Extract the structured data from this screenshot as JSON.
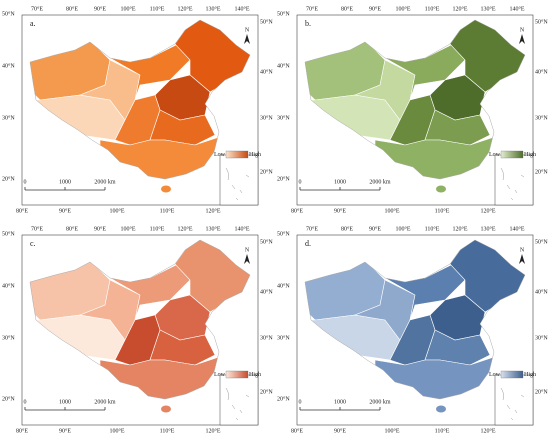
{
  "panels": [
    {
      "label": "a.",
      "legend": {
        "low": "Low",
        "high": "High"
      },
      "legend_colors": [
        "#fde3cc",
        "#c74a12"
      ],
      "region_colors": [
        "#f39a4f",
        "#fbd7b7",
        "#f8bd8a",
        "#f07a26",
        "#e25a12",
        "#c74a12",
        "#ef7c2e",
        "#e86a1e",
        "#f48b3a"
      ]
    },
    {
      "label": "b.",
      "legend": {
        "low": "Low",
        "high": "High"
      },
      "legend_colors": [
        "#e2eecd",
        "#4f6d2a"
      ],
      "region_colors": [
        "#a3c17a",
        "#d3e5b6",
        "#c3d99f",
        "#8aab5c",
        "#5d7c33",
        "#4f6d2a",
        "#6a8a3d",
        "#7c9c4f",
        "#8fb163"
      ]
    },
    {
      "label": "c.",
      "legend": {
        "low": "Low",
        "high": "High"
      },
      "legend_colors": [
        "#fde8dc",
        "#c84d2f"
      ],
      "region_colors": [
        "#f6c2a8",
        "#fde8dc",
        "#f4b394",
        "#ec9a78",
        "#e8926e",
        "#d9684a",
        "#c84d2f",
        "#d8623f",
        "#e48462"
      ]
    },
    {
      "label": "d.",
      "legend": {
        "low": "Low",
        "high": "High"
      },
      "legend_colors": [
        "#d6e1ee",
        "#3d5f8e"
      ],
      "region_colors": [
        "#93aed0",
        "#c8d6e8",
        "#8fa9cd",
        "#5b7fae",
        "#476c9c",
        "#3d5f8e",
        "#50749f",
        "#5e81ad",
        "#7594bf"
      ]
    }
  ],
  "axes": {
    "top_lon": [
      "70°E",
      "80°E",
      "90°E",
      "100°E",
      "110°E",
      "120°E",
      "130°E",
      "140°E"
    ],
    "bottom_lon": [
      "80°E",
      "90°E",
      "100°E",
      "110°E",
      "120°E"
    ],
    "left_lat": [
      "50°N",
      "40°N",
      "30°N",
      "20°N"
    ],
    "right_lat": [
      "50°N",
      "40°N",
      "30°N",
      "20°N"
    ]
  },
  "scale_bar": [
    "0",
    "1000",
    "2000 km"
  ],
  "north": "N"
}
